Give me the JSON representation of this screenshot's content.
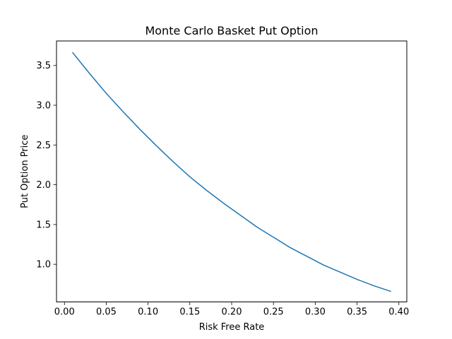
{
  "chart_data": {
    "type": "line",
    "title": "Monte Carlo Basket Put Option",
    "xlabel": "Risk Free Rate",
    "ylabel": "Put Option Price",
    "xlim": [
      -0.0095,
      0.4095
    ],
    "ylim": [
      0.5265,
      3.8085
    ],
    "grid": false,
    "x_ticks": [
      0.0,
      0.05,
      0.1,
      0.15,
      0.2,
      0.25,
      0.3,
      0.35,
      0.4
    ],
    "x_tick_labels": [
      "0.00",
      "0.05",
      "0.10",
      "0.15",
      "0.20",
      "0.25",
      "0.30",
      "0.35",
      "0.40"
    ],
    "y_ticks": [
      1.0,
      1.5,
      2.0,
      2.5,
      3.0,
      3.5
    ],
    "y_tick_labels": [
      "1.0",
      "1.5",
      "2.0",
      "2.5",
      "3.0",
      "3.5"
    ],
    "series": [
      {
        "color": "#1f77b4",
        "x": [
          0.01,
          0.03,
          0.05,
          0.07,
          0.09,
          0.11,
          0.13,
          0.15,
          0.17,
          0.19,
          0.21,
          0.23,
          0.25,
          0.27,
          0.29,
          0.31,
          0.33,
          0.35,
          0.37,
          0.39
        ],
        "values": [
          3.66,
          3.4,
          3.15,
          2.92,
          2.7,
          2.49,
          2.29,
          2.1,
          1.93,
          1.77,
          1.62,
          1.47,
          1.34,
          1.21,
          1.1,
          0.99,
          0.9,
          0.81,
          0.73,
          0.66
        ]
      }
    ]
  }
}
